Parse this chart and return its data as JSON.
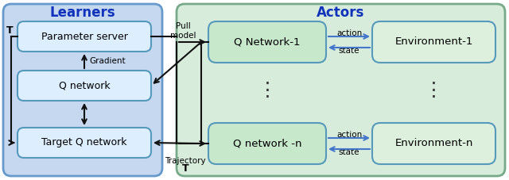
{
  "fig_width": 6.4,
  "fig_height": 2.27,
  "dpi": 100,
  "learners_bg": "#c5d8f0",
  "learners_bg_border": "#6699cc",
  "actors_bg": "#d8ecdc",
  "actors_bg_border": "#77aa88",
  "box_fill_learner": "#ddeeff",
  "box_fill_actor": "#c8e8cc",
  "box_fill_env": "#ddf0dd",
  "box_edge": "#5599bb",
  "title_color": "#1133bb",
  "arrow_color": "#111111",
  "blue_arrow_color": "#4477cc",
  "learners_title": "Learners",
  "actors_title": "Actors",
  "param_server_label": "Parameter server",
  "q_network_label": "Q network",
  "target_q_label": "Target Q network",
  "q_network_1_label": "Q Network-1",
  "q_network_n_label": "Q network -n",
  "env_1_label": "Environment-1",
  "env_n_label": "Environment-n",
  "gradient_label": "Gradient",
  "pull_model_label": "Pull\nmodel",
  "trajectory_label": "Trajectory",
  "action_label": "action",
  "state_label": "state",
  "T_top": "T",
  "T_bottom": "T"
}
